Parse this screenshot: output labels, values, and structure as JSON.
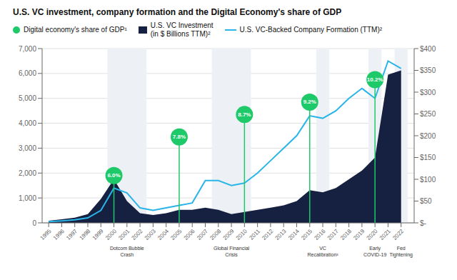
{
  "chart_data": {
    "type": "line",
    "title": "U.S. VC investment, company formation and the Digital Economy's share of GDP",
    "x": [
      1995,
      1996,
      1997,
      1998,
      1999,
      2000,
      2001,
      2002,
      2003,
      2004,
      2005,
      2006,
      2007,
      2008,
      2009,
      2010,
      2011,
      2012,
      2013,
      2014,
      2015,
      2016,
      2017,
      2018,
      2019,
      2020,
      2021,
      2022
    ],
    "xlim": [
      1994.5,
      2023
    ],
    "xticks": [
      1995,
      1996,
      1997,
      1998,
      1999,
      2000,
      2001,
      2002,
      2003,
      2004,
      2005,
      2006,
      2007,
      2008,
      2009,
      2010,
      2011,
      2012,
      2013,
      2014,
      2015,
      2016,
      2017,
      2018,
      2019,
      2020,
      2021,
      2022
    ],
    "ylim": [
      0,
      7000
    ],
    "yticks": [
      0,
      {
        "value": 1000,
        "label": "1,000"
      },
      {
        "value": 2000,
        "label": "2,000"
      },
      {
        "value": 3000,
        "label": "3,000"
      },
      {
        "value": 4000,
        "label": "4,000"
      },
      {
        "value": 5000,
        "label": "5,000"
      },
      {
        "value": 6000,
        "label": "6,000"
      },
      {
        "value": 7000,
        "label": "7,000"
      }
    ],
    "y2lim": [
      0,
      400
    ],
    "y2ticks": [
      {
        "value": 0,
        "label": "$-"
      },
      {
        "value": 50,
        "label": "$50"
      },
      {
        "value": 100,
        "label": "$100"
      },
      {
        "value": 150,
        "label": "$150"
      },
      {
        "value": 200,
        "label": "$200"
      },
      {
        "value": 250,
        "label": "$250"
      },
      {
        "value": 300,
        "label": "$300"
      },
      {
        "value": 350,
        "label": "$350"
      },
      {
        "value": 400,
        "label": "$400"
      }
    ],
    "grid": true,
    "series": [
      {
        "name": "Digital economy's share of GDP¹",
        "type": "scatter",
        "marker": "circle",
        "color": "#1ec96a"
      },
      {
        "name": "U.S. VC Investment\n(in $ Billions TTM)²",
        "type": "area",
        "axis": "y2",
        "color": "#162040",
        "values": [
          5,
          8,
          12,
          20,
          55,
          100,
          50,
          22,
          18,
          22,
          30,
          30,
          35,
          30,
          20,
          25,
          30,
          35,
          40,
          50,
          75,
          70,
          80,
          100,
          120,
          150,
          340,
          350
        ]
      },
      {
        "name": "U.S. VC-Backed Company Formation (TTM)²",
        "type": "line",
        "color": "#29b5e8",
        "values": [
          50,
          80,
          120,
          200,
          500,
          1400,
          1200,
          600,
          500,
          600,
          700,
          800,
          1700,
          1700,
          1500,
          1600,
          2000,
          2500,
          3000,
          3500,
          4300,
          4200,
          4500,
          5000,
          5400,
          5000,
          6500,
          6200
        ]
      }
    ],
    "annotations": [
      {
        "x": 2000,
        "y": 1900,
        "text": "6.0%"
      },
      {
        "x": 2005,
        "y": 3450,
        "text": "7.8%"
      },
      {
        "x": 2010,
        "y": 4350,
        "text": "8.7%"
      },
      {
        "x": 2015,
        "y": 4850,
        "text": "9.2%"
      },
      {
        "x": 2020,
        "y": 5750,
        "text": "10.2%"
      }
    ],
    "shaded_regions": [
      {
        "xmin": 1999.5,
        "xmax": 2002.5,
        "label": "Dotcom Bubble\nCrash",
        "color": "#edf1f5"
      },
      {
        "xmin": 2007.5,
        "xmax": 2010.5,
        "label": "Global Financial\nCrisis",
        "color": "#edf1f5"
      },
      {
        "xmin": 2015.5,
        "xmax": 2016.5,
        "label": "VC\nRecalibration³",
        "color": "#edf1f5"
      },
      {
        "xmin": 2019.5,
        "xmax": 2020.5,
        "label": "Early\nCOVID-19",
        "color": "#edf1f5"
      },
      {
        "xmin": 2021.5,
        "xmax": 2022.5,
        "label": "Fed\nTightening",
        "color": "#edf1f5"
      }
    ]
  }
}
